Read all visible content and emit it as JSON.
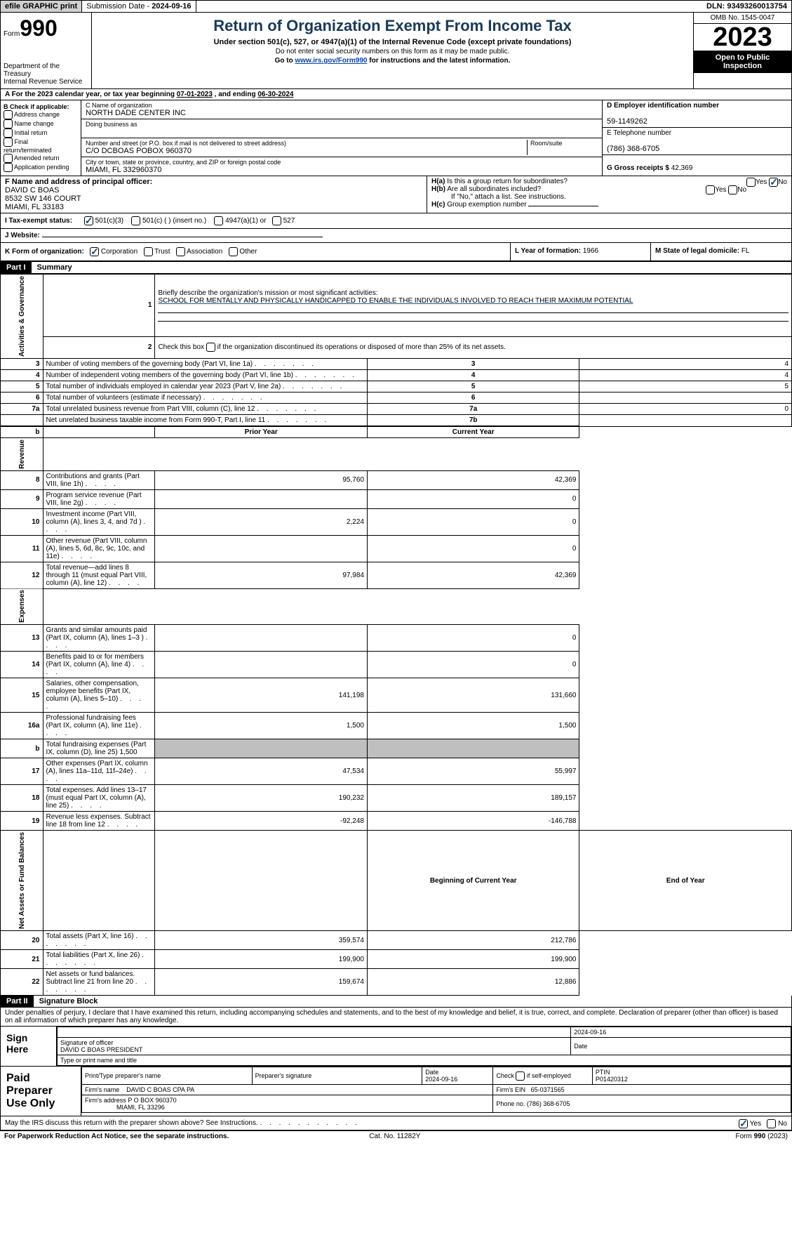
{
  "topbar": {
    "efile": "efile GRAPHIC print",
    "submission_label": "Submission Date - ",
    "submission_date": "2024-09-16",
    "dln_label": "DLN: ",
    "dln": "93493260013754"
  },
  "header": {
    "form_prefix": "Form",
    "form_number": "990",
    "dept": "Department of the Treasury\nInternal Revenue Service",
    "title": "Return of Organization Exempt From Income Tax",
    "sub": "Under section 501(c), 527, or 4947(a)(1) of the Internal Revenue Code (except private foundations)",
    "note1": "Do not enter social security numbers on this form as it may be made public.",
    "note2_pre": "Go to ",
    "note2_link": "www.irs.gov/Form990",
    "note2_post": " for instructions and the latest information.",
    "omb": "OMB No. 1545-0047",
    "year": "2023",
    "open_pub": "Open to Public Inspection"
  },
  "lineA": {
    "pre": "For the 2023 calendar year, or tax year beginning ",
    "begin": "07-01-2023",
    "mid": " , and ending ",
    "end": "06-30-2024"
  },
  "colB": {
    "label": "B Check if applicable:",
    "items": [
      "Address change",
      "Name change",
      "Initial return",
      "Final return/terminated",
      "Amended return",
      "Application pending"
    ]
  },
  "colC": {
    "name_lbl": "C Name of organization",
    "name": "NORTH DADE CENTER INC",
    "dba_lbl": "Doing business as",
    "dba": "",
    "street_lbl": "Number and street (or P.O. box if mail is not delivered to street address)",
    "room_lbl": "Room/suite",
    "street": "C/O DCBOAS POBOX 960370",
    "city_lbl": "City or town, state or province, country, and ZIP or foreign postal code",
    "city": "MIAMI, FL  332960370"
  },
  "colD": {
    "ein_lbl": "D Employer identification number",
    "ein": "59-1149262",
    "tel_lbl": "E Telephone number",
    "tel": "(786) 368-6705",
    "gross_lbl": "G Gross receipts $ ",
    "gross": "42,369"
  },
  "rowF": {
    "lbl": "F Name and address of principal officer:",
    "name": "DAVID C BOAS",
    "addr1": "8532 SW 146 COURT",
    "addr2": "MIAMI, FL  33183"
  },
  "rowH": {
    "a_lbl": "H(a) Is this a group return for subordinates?",
    "b_lbl": "H(b) Are all subordinates included?",
    "b_note": "If \"No,\" attach a list. See instructions.",
    "c_lbl": "H(c) Group exemption number",
    "yes": "Yes",
    "no": "No"
  },
  "rowI": {
    "lbl": "I   Tax-exempt status:",
    "o1": "501(c)(3)",
    "o2": "501(c) (   ) (insert no.)",
    "o3": "4947(a)(1) or",
    "o4": "527"
  },
  "rowJ": {
    "lbl": "J   Website:",
    "val": ""
  },
  "rowK": {
    "lbl": "K Form of organization:",
    "opts": [
      "Corporation",
      "Trust",
      "Association",
      "Other"
    ]
  },
  "rowL": {
    "lbl": "L Year of formation: ",
    "val": "1966"
  },
  "rowM": {
    "lbl": "M State of legal domicile: ",
    "val": "FL"
  },
  "part1": {
    "hdr": "Part I",
    "title": "Summary",
    "sidelabels": [
      "Activities & Governance",
      "Revenue",
      "Expenses",
      "Net Assets or Fund Balances"
    ],
    "l1_lbl": "Briefly describe the organization's mission or most significant activities:",
    "l1_val": "SCHOOL FOR MENTALLY AND PHYSICALLY HANDICAPPED TO ENABLE THE INDIVIDUALS INVOLVED TO REACH THEIR MAXIMUM POTENTIAL",
    "l2_lbl": "Check this box     if the organization discontinued its operations or disposed of more than 25% of its net assets.",
    "rows_gov": [
      {
        "n": "3",
        "lbl": "Number of voting members of the governing body (Part VI, line 1a)",
        "box": "3",
        "val": "4"
      },
      {
        "n": "4",
        "lbl": "Number of independent voting members of the governing body (Part VI, line 1b)",
        "box": "4",
        "val": "4"
      },
      {
        "n": "5",
        "lbl": "Total number of individuals employed in calendar year 2023 (Part V, line 2a)",
        "box": "5",
        "val": "5"
      },
      {
        "n": "6",
        "lbl": "Total number of volunteers (estimate if necessary)",
        "box": "6",
        "val": ""
      },
      {
        "n": "7a",
        "lbl": "Total unrelated business revenue from Part VIII, column (C), line 12",
        "box": "7a",
        "val": "0"
      },
      {
        "n": "",
        "lbl": "Net unrelated business taxable income from Form 990-T, Part I, line 11",
        "box": "7b",
        "val": ""
      }
    ],
    "col_prior": "Prior Year",
    "col_current": "Current Year",
    "rows_rev": [
      {
        "n": "8",
        "lbl": "Contributions and grants (Part VIII, line 1h)",
        "p": "95,760",
        "c": "42,369"
      },
      {
        "n": "9",
        "lbl": "Program service revenue (Part VIII, line 2g)",
        "p": "",
        "c": "0"
      },
      {
        "n": "10",
        "lbl": "Investment income (Part VIII, column (A), lines 3, 4, and 7d )",
        "p": "2,224",
        "c": "0"
      },
      {
        "n": "11",
        "lbl": "Other revenue (Part VIII, column (A), lines 5, 6d, 8c, 9c, 10c, and 11e)",
        "p": "",
        "c": "0"
      },
      {
        "n": "12",
        "lbl": "Total revenue—add lines 8 through 11 (must equal Part VIII, column (A), line 12)",
        "p": "97,984",
        "c": "42,369"
      }
    ],
    "rows_exp": [
      {
        "n": "13",
        "lbl": "Grants and similar amounts paid (Part IX, column (A), lines 1–3 )",
        "p": "",
        "c": "0"
      },
      {
        "n": "14",
        "lbl": "Benefits paid to or for members (Part IX, column (A), line 4)",
        "p": "",
        "c": "0"
      },
      {
        "n": "15",
        "lbl": "Salaries, other compensation, employee benefits (Part IX, column (A), lines 5–10)",
        "p": "141,198",
        "c": "131,660"
      },
      {
        "n": "16a",
        "lbl": "Professional fundraising fees (Part IX, column (A), line 11e)",
        "p": "1,500",
        "c": "1,500"
      },
      {
        "n": "b",
        "lbl": "Total fundraising expenses (Part IX, column (D), line 25) 1,500",
        "p": "GRAY",
        "c": "GRAY"
      },
      {
        "n": "17",
        "lbl": "Other expenses (Part IX, column (A), lines 11a–11d, 11f–24e)",
        "p": "47,534",
        "c": "55,997"
      },
      {
        "n": "18",
        "lbl": "Total expenses. Add lines 13–17 (must equal Part IX, column (A), line 25)",
        "p": "190,232",
        "c": "189,157"
      },
      {
        "n": "19",
        "lbl": "Revenue less expenses. Subtract line 18 from line 12",
        "p": "-92,248",
        "c": "-146,788"
      }
    ],
    "col_begin": "Beginning of Current Year",
    "col_end": "End of Year",
    "rows_net": [
      {
        "n": "20",
        "lbl": "Total assets (Part X, line 16)",
        "p": "359,574",
        "c": "212,786"
      },
      {
        "n": "21",
        "lbl": "Total liabilities (Part X, line 26)",
        "p": "199,900",
        "c": "199,900"
      },
      {
        "n": "22",
        "lbl": "Net assets or fund balances. Subtract line 21 from line 20",
        "p": "159,674",
        "c": "12,886"
      }
    ]
  },
  "part2": {
    "hdr": "Part II",
    "title": "Signature Block",
    "perjury": "Under penalties of perjury, I declare that I have examined this return, including accompanying schedules and statements, and to the best of my knowledge and belief, it is true, correct, and complete. Declaration of preparer (other than officer) is based on all information of which preparer has any knowledge."
  },
  "sign": {
    "left": "Sign Here",
    "date": "2024-09-16",
    "sig_lbl": "Signature of officer",
    "name": "DAVID C BOAS PRESIDENT",
    "type_lbl": "Type or print name and title",
    "date_lbl": "Date"
  },
  "prep": {
    "left": "Paid Preparer Use Only",
    "h1": "Print/Type preparer's name",
    "h2": "Preparer's signature",
    "h3": "Date",
    "date": "2024-09-16",
    "h4_pre": "Check",
    "h4_post": "if self-employed",
    "h5": "PTIN",
    "ptin": "P01420312",
    "firm_name_lbl": "Firm's name",
    "firm_name": "DAVID C BOAS CPA PA",
    "firm_ein_lbl": "Firm's EIN",
    "firm_ein": "65-0371565",
    "firm_addr_lbl": "Firm's address",
    "firm_addr1": "P O BOX 960370",
    "firm_addr2": "MIAMI, FL  33296",
    "phone_lbl": "Phone no.",
    "phone": "(786) 368-6705"
  },
  "discuss": {
    "lbl": "May the IRS discuss this return with the preparer shown above? See Instructions.",
    "yes": "Yes",
    "no": "No"
  },
  "footer": {
    "left": "For Paperwork Reduction Act Notice, see the separate instructions.",
    "mid": "Cat. No. 11282Y",
    "right_pre": "Form ",
    "right_form": "990",
    "right_post": " (2023)"
  }
}
